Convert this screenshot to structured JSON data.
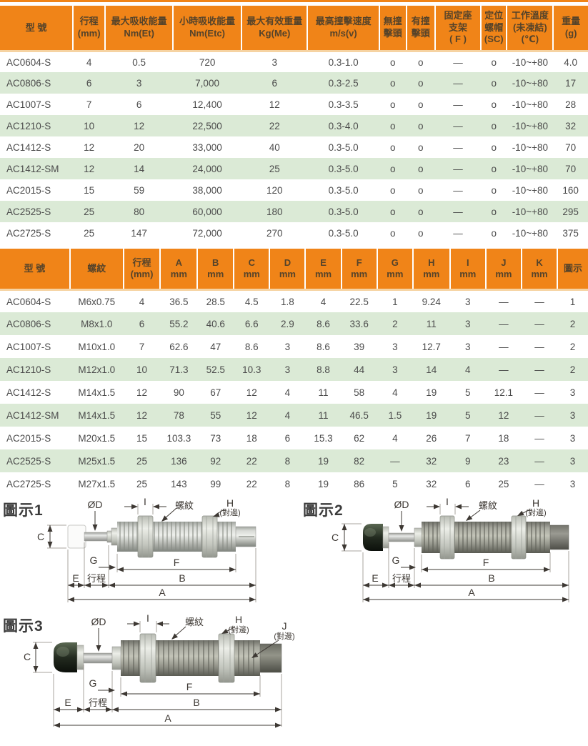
{
  "page": {
    "accent_color": "#f08418",
    "row_alt_color": "#dbead6",
    "header_text_color": "#55432a"
  },
  "table1": {
    "widths": [
      12.4,
      5.5,
      11.5,
      11.7,
      11.2,
      12.2,
      4.6,
      4.9,
      7.8,
      4.4,
      7.9,
      5.9
    ],
    "headers": [
      "型 號",
      "行程\n(mm)",
      "最大吸收能量\nNm(Et)",
      "小時吸收能量\nNm(Etc)",
      "最大有效重量\nKg(Me)",
      "最高撞擊速度\nm/s(v)",
      "無撞\n擊頭",
      "有撞\n擊頭",
      "固定座\n支架\n( F )",
      "定位\n螺帽\n(SC)",
      "工作溫度\n(未凍結)\n(℃)",
      "重量\n(g)"
    ],
    "rows": [
      [
        "AC0604-S",
        "4",
        "0.5",
        "720",
        "3",
        "0.3-1.0",
        "o",
        "o",
        "—",
        "o",
        "-10~+80",
        "4.0"
      ],
      [
        "AC0806-S",
        "6",
        "3",
        "7,000",
        "6",
        "0.3-2.5",
        "o",
        "o",
        "—",
        "o",
        "-10~+80",
        "17"
      ],
      [
        "AC1007-S",
        "7",
        "6",
        "12,400",
        "12",
        "0.3-3.5",
        "o",
        "o",
        "—",
        "o",
        "-10~+80",
        "28"
      ],
      [
        "AC1210-S",
        "10",
        "12",
        "22,500",
        "22",
        "0.3-4.0",
        "o",
        "o",
        "—",
        "o",
        "-10~+80",
        "32"
      ],
      [
        "AC1412-S",
        "12",
        "20",
        "33,000",
        "40",
        "0.3-5.0",
        "o",
        "o",
        "—",
        "o",
        "-10~+80",
        "70"
      ],
      [
        "AC1412-SM",
        "12",
        "14",
        "24,000",
        "25",
        "0.3-5.0",
        "o",
        "o",
        "—",
        "o",
        "-10~+80",
        "70"
      ],
      [
        "AC2015-S",
        "15",
        "59",
        "38,000",
        "120",
        "0.3-5.0",
        "o",
        "o",
        "—",
        "o",
        "-10~+80",
        "160"
      ],
      [
        "AC2525-S",
        "25",
        "80",
        "60,000",
        "180",
        "0.3-5.0",
        "o",
        "o",
        "—",
        "o",
        "-10~+80",
        "295"
      ],
      [
        "AC2725-S",
        "25",
        "147",
        "72,000",
        "270",
        "0.3-5.0",
        "o",
        "o",
        "—",
        "o",
        "-10~+80",
        "375"
      ]
    ]
  },
  "table2": {
    "widths": [
      11.9,
      9.1,
      6.3,
      6.3,
      6.2,
      6.1,
      6.1,
      6.1,
      6.1,
      6.1,
      6.3,
      6.1,
      6.1,
      6.1,
      5.2
    ],
    "headers": [
      "型 號",
      "螺紋",
      "行程\n(mm)",
      "A\nmm",
      "B\nmm",
      "C\nmm",
      "D\nmm",
      "E\nmm",
      "F\nmm",
      "G\nmm",
      "H\nmm",
      "I\nmm",
      "J\nmm",
      "K\nmm",
      "圖示"
    ],
    "rows": [
      [
        "AC0604-S",
        "M6x0.75",
        "4",
        "36.5",
        "28.5",
        "4.5",
        "1.8",
        "4",
        "22.5",
        "1",
        "9.24",
        "3",
        "—",
        "—",
        "1"
      ],
      [
        "AC0806-S",
        "M8x1.0",
        "6",
        "55.2",
        "40.6",
        "6.6",
        "2.9",
        "8.6",
        "33.6",
        "2",
        "11",
        "3",
        "—",
        "—",
        "2"
      ],
      [
        "AC1007-S",
        "M10x1.0",
        "7",
        "62.6",
        "47",
        "8.6",
        "3",
        "8.6",
        "39",
        "3",
        "12.7",
        "3",
        "—",
        "—",
        "2"
      ],
      [
        "AC1210-S",
        "M12x1.0",
        "10",
        "71.3",
        "52.5",
        "10.3",
        "3",
        "8.8",
        "44",
        "3",
        "14",
        "4",
        "—",
        "—",
        "2"
      ],
      [
        "AC1412-S",
        "M14x1.5",
        "12",
        "90",
        "67",
        "12",
        "4",
        "11",
        "58",
        "4",
        "19",
        "5",
        "12.1",
        "—",
        "3"
      ],
      [
        "AC1412-SM",
        "M14x1.5",
        "12",
        "78",
        "55",
        "12",
        "4",
        "11",
        "46.5",
        "1.5",
        "19",
        "5",
        "12",
        "—",
        "3"
      ],
      [
        "AC2015-S",
        "M20x1.5",
        "15",
        "103.3",
        "73",
        "18",
        "6",
        "15.3",
        "62",
        "4",
        "26",
        "7",
        "18",
        "—",
        "3"
      ],
      [
        "AC2525-S",
        "M25x1.5",
        "25",
        "136",
        "92",
        "22",
        "8",
        "19",
        "82",
        "—",
        "32",
        "9",
        "23",
        "—",
        "3"
      ],
      [
        "AC2725-S",
        "M27x1.5",
        "25",
        "143",
        "99",
        "22",
        "8",
        "19",
        "86",
        "5",
        "32",
        "6",
        "25",
        "—",
        "3"
      ]
    ]
  },
  "diagrams": {
    "d1_title": "圖示1",
    "d2_title": "圖示2",
    "d3_title": "圖示3",
    "labels": {
      "od": "ØD",
      "i": "I",
      "thread": "螺紋",
      "h": "H",
      "flats": "(對邊)",
      "j": "J",
      "c": "C",
      "g": "G",
      "f": "F",
      "e": "E",
      "stroke": "行程",
      "b": "B",
      "a": "A"
    }
  }
}
